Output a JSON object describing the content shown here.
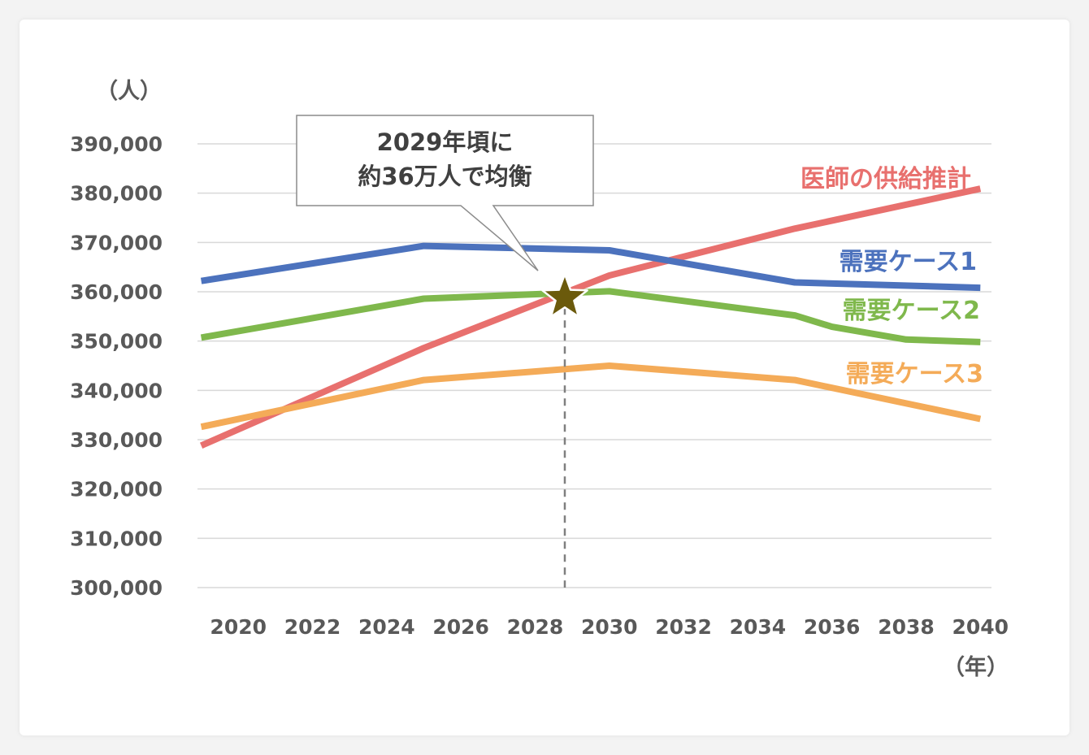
{
  "chart_data": {
    "type": "line",
    "y_unit": "（人）",
    "x_unit": "（年）",
    "ylim": [
      300000,
      390000
    ],
    "y_ticks": [
      300000,
      310000,
      320000,
      330000,
      340000,
      350000,
      360000,
      370000,
      380000,
      390000
    ],
    "y_tick_labels": [
      "300,000",
      "310,000",
      "320,000",
      "330,000",
      "340,000",
      "350,000",
      "360,000",
      "370,000",
      "380,000",
      "390,000"
    ],
    "xlim": [
      2018.9,
      2040.3
    ],
    "x_ticks": [
      2020,
      2022,
      2024,
      2026,
      2028,
      2030,
      2032,
      2034,
      2036,
      2038,
      2040
    ],
    "x_tick_labels": [
      "2020",
      "2022",
      "2024",
      "2026",
      "2028",
      "2030",
      "2032",
      "2034",
      "2036",
      "2038",
      "2040"
    ],
    "grid": true,
    "series": [
      {
        "name": "医師の供給推計",
        "color": "#e8706e",
        "x": [
          2019,
          2025,
          2030,
          2035,
          2040
        ],
        "values": [
          328800,
          348600,
          363300,
          372800,
          380900
        ]
      },
      {
        "name": "需要ケース1",
        "color": "#4c72bd",
        "x": [
          2019,
          2025,
          2030,
          2035,
          2040
        ],
        "values": [
          362200,
          369300,
          368400,
          361900,
          360800
        ]
      },
      {
        "name": "需要ケース2",
        "color": "#7fb84c",
        "x": [
          2019,
          2025,
          2030,
          2035,
          2036,
          2038,
          2040
        ],
        "values": [
          350700,
          358600,
          360100,
          355200,
          352900,
          350300,
          349800
        ]
      },
      {
        "name": "需要ケース3",
        "color": "#f4ab58",
        "x": [
          2019,
          2025,
          2030,
          2035,
          2040
        ],
        "values": [
          332600,
          342100,
          345000,
          342100,
          334200
        ]
      }
    ],
    "annotation": {
      "lines": [
        "2029年頃に",
        "約36万人で均衡"
      ],
      "x": 2028.8,
      "y": 358800,
      "marker": "star",
      "marker_color": "#6b5a0c"
    }
  }
}
